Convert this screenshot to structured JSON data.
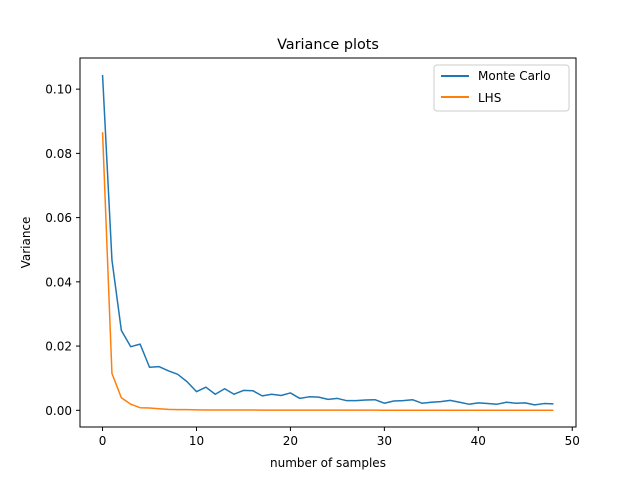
{
  "chart_data": {
    "type": "line",
    "title": "Variance plots",
    "xlabel": "number of samples",
    "ylabel": "Variance",
    "xlim": [
      -2.4,
      50.4
    ],
    "ylim": [
      -0.0052,
      0.1097
    ],
    "xticks": [
      0,
      10,
      20,
      30,
      40,
      50
    ],
    "xtick_labels": [
      "0",
      "10",
      "20",
      "30",
      "40",
      "50"
    ],
    "yticks": [
      0.0,
      0.02,
      0.04,
      0.06,
      0.08,
      0.1
    ],
    "ytick_labels": [
      "0.00",
      "0.02",
      "0.04",
      "0.06",
      "0.08",
      "0.10"
    ],
    "grid": false,
    "legend_position": "top-right",
    "x": [
      0,
      1,
      2,
      3,
      4,
      5,
      6,
      7,
      8,
      9,
      10,
      11,
      12,
      13,
      14,
      15,
      16,
      17,
      18,
      19,
      20,
      21,
      22,
      23,
      24,
      25,
      26,
      27,
      28,
      29,
      30,
      31,
      32,
      33,
      34,
      35,
      36,
      37,
      38,
      39,
      40,
      41,
      42,
      43,
      44,
      45,
      46,
      47,
      48
    ],
    "series": [
      {
        "name": "Monte Carlo",
        "color": "#1f77b4",
        "values": [
          0.1044,
          0.0468,
          0.0249,
          0.0198,
          0.0206,
          0.0134,
          0.0136,
          0.0123,
          0.0112,
          0.0089,
          0.0058,
          0.0072,
          0.005,
          0.0067,
          0.005,
          0.0062,
          0.0061,
          0.0045,
          0.005,
          0.0046,
          0.0054,
          0.0037,
          0.0042,
          0.0041,
          0.0034,
          0.0037,
          0.003,
          0.003,
          0.0032,
          0.0033,
          0.0022,
          0.0029,
          0.003,
          0.0033,
          0.0022,
          0.0025,
          0.0027,
          0.0031,
          0.0025,
          0.0019,
          0.0023,
          0.0021,
          0.0019,
          0.0025,
          0.0022,
          0.0023,
          0.0017,
          0.0021,
          0.002
        ]
      },
      {
        "name": "LHS",
        "color": "#ff7f0e",
        "values": [
          0.0866,
          0.0115,
          0.0039,
          0.0019,
          0.0008,
          0.0007,
          0.0005,
          0.0003,
          0.0002,
          0.0002,
          0.00015,
          0.0001,
          0.0001,
          0.0001,
          0.0001,
          8e-05,
          8e-05,
          7e-05,
          7e-05,
          6e-05,
          6e-05,
          5e-05,
          5e-05,
          5e-05,
          5e-05,
          4e-05,
          4e-05,
          4e-05,
          4e-05,
          4e-05,
          3e-05,
          3e-05,
          3e-05,
          3e-05,
          3e-05,
          3e-05,
          3e-05,
          3e-05,
          2e-05,
          2e-05,
          2e-05,
          2e-05,
          2e-05,
          2e-05,
          2e-05,
          2e-05,
          2e-05,
          2e-05,
          2e-05
        ]
      }
    ]
  }
}
